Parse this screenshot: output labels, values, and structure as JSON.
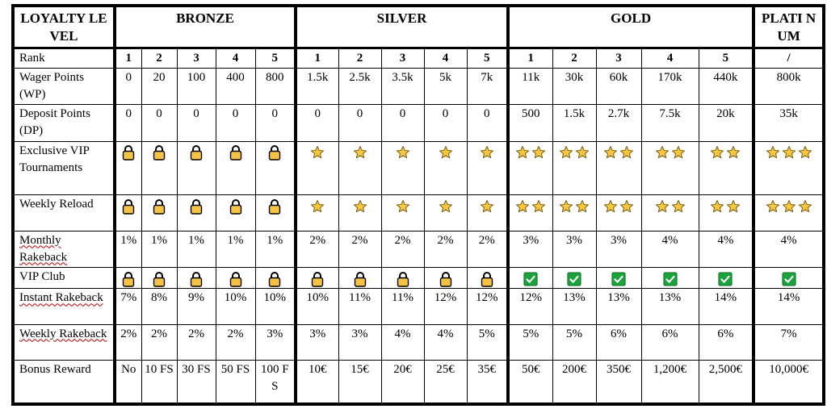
{
  "header": {
    "level_label": "LOYALTY LEVEL",
    "tiers": [
      "BRONZE",
      "SILVER",
      "GOLD",
      "PLATI NUM"
    ]
  },
  "rows": {
    "rank": {
      "label": "Rank",
      "values": [
        "1",
        "2",
        "3",
        "4",
        "5",
        "1",
        "2",
        "3",
        "4",
        "5",
        "1",
        "2",
        "3",
        "4",
        "5",
        "/"
      ]
    },
    "wager": {
      "label": "Wager Points (WP)",
      "values": [
        "0",
        "20",
        "100",
        "400",
        "800",
        "1.5k",
        "2.5k",
        "3.5k",
        "5k",
        "7k",
        "11k",
        "30k",
        "60k",
        "170k",
        "440k",
        "800k"
      ]
    },
    "deposit": {
      "label": "Deposit Points (DP)",
      "values": [
        "0",
        "0",
        "0",
        "0",
        "0",
        "0",
        "0",
        "0",
        "0",
        "0",
        "500",
        "1.5k",
        "2.7k",
        "7.5k",
        "20k",
        "35k"
      ]
    },
    "tournaments": {
      "label": "Exclusive VIP Tournaments",
      "icons": [
        "lock",
        "lock",
        "lock",
        "lock",
        "lock",
        "star1",
        "star1",
        "star1",
        "star1",
        "star1",
        "star2",
        "star2",
        "star2",
        "star2",
        "star2",
        "star3"
      ]
    },
    "reload": {
      "label": "Weekly Reload",
      "icons": [
        "lock",
        "lock",
        "lock",
        "lock",
        "lock",
        "star1",
        "star1",
        "star1",
        "star1",
        "star1",
        "star2",
        "star2",
        "star2",
        "star2",
        "star2",
        "star3"
      ]
    },
    "monthly": {
      "label": "Monthly Rakeback",
      "values": [
        "1%",
        "1%",
        "1%",
        "1%",
        "1%",
        "2%",
        "2%",
        "2%",
        "2%",
        "2%",
        "3%",
        "3%",
        "3%",
        "4%",
        "4%",
        "4%"
      ]
    },
    "vipclub": {
      "label": "VIP Club",
      "icons": [
        "lock",
        "lock",
        "lock",
        "lock",
        "lock",
        "lock",
        "lock",
        "lock",
        "lock",
        "lock",
        "check",
        "check",
        "check",
        "check",
        "check",
        "check"
      ]
    },
    "instant": {
      "label": "Instant Rakeback",
      "values": [
        "7%",
        "8%",
        "9%",
        "10%",
        "10%",
        "10%",
        "11%",
        "11%",
        "12%",
        "12%",
        "12%",
        "13%",
        "13%",
        "13%",
        "14%",
        "14%"
      ]
    },
    "weekly_rb": {
      "label": "Weekly Rakeback",
      "values": [
        "2%",
        "2%",
        "2%",
        "2%",
        "3%",
        "3%",
        "3%",
        "4%",
        "4%",
        "5%",
        "5%",
        "5%",
        "6%",
        "6%",
        "6%",
        "7%"
      ]
    },
    "bonus": {
      "label": "Bonus Reward",
      "values": [
        "No",
        "10 FS",
        "30 FS",
        "50 FS",
        "100 FS",
        "10€",
        "15€",
        "20€",
        "25€",
        "35€",
        "50€",
        "200€",
        "350€",
        "1,200€",
        "2,500€",
        "10,000€"
      ]
    }
  },
  "icons": {
    "lock": "padlock-icon",
    "star": "star-icon",
    "check": "checkmark-icon"
  },
  "colors": {
    "lock_body": "#f5c242",
    "star_fill": "#f9c73d",
    "check_fill": "#1aa33a"
  }
}
